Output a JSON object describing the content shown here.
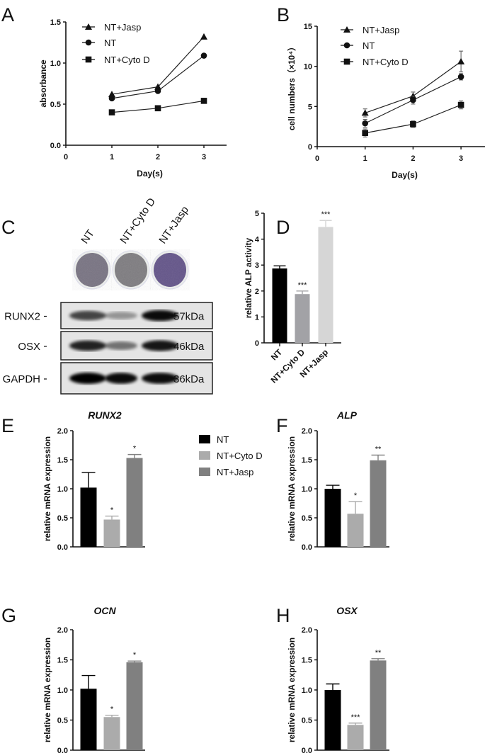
{
  "panels": [
    "A",
    "B",
    "C",
    "D",
    "E",
    "F",
    "G",
    "H"
  ],
  "chart_data": [
    {
      "id": "A",
      "type": "line",
      "title": "",
      "xlabel": "Day(s)",
      "ylabel": "absorbance",
      "xlim": [
        0,
        3.5
      ],
      "ylim": [
        0,
        1.5
      ],
      "xticks": [
        "0",
        "1",
        "2",
        "3"
      ],
      "yticks": [
        "0.0",
        "0.5",
        "1.0",
        "1.5"
      ],
      "legend_position": "top-left",
      "x": [
        1,
        2,
        3
      ],
      "series": [
        {
          "name": "NT+Jasp",
          "marker": "triangle",
          "values": [
            0.62,
            0.71,
            1.32
          ]
        },
        {
          "name": "NT",
          "marker": "circle",
          "values": [
            0.57,
            0.66,
            1.09
          ]
        },
        {
          "name": "NT+Cyto D",
          "marker": "square",
          "values": [
            0.4,
            0.45,
            0.54
          ]
        }
      ]
    },
    {
      "id": "B",
      "type": "line",
      "title": "",
      "xlabel": "Day(s)",
      "ylabel": "cell numbers（×10⁴）",
      "xlim": [
        0,
        3.5
      ],
      "ylim": [
        0,
        15
      ],
      "xticks": [
        "0",
        "1",
        "2",
        "3"
      ],
      "yticks": [
        "0",
        "5",
        "10",
        "15"
      ],
      "legend_position": "top-left",
      "x": [
        1,
        2,
        3
      ],
      "series": [
        {
          "name": "NT+Jasp",
          "marker": "triangle",
          "values": [
            4.2,
            6.3,
            10.6
          ],
          "errors": [
            0.5,
            0.5,
            1.3
          ]
        },
        {
          "name": "NT",
          "marker": "circle",
          "values": [
            2.9,
            5.8,
            8.7
          ],
          "errors": [
            0.5,
            0.5,
            0.4
          ]
        },
        {
          "name": "NT+Cyto D",
          "marker": "square",
          "values": [
            1.7,
            2.8,
            5.2
          ],
          "errors": [
            0.5,
            0.4,
            0.5
          ]
        }
      ]
    },
    {
      "id": "D",
      "type": "bar",
      "title": "",
      "xlabel": "",
      "ylabel": "relative ALP activity",
      "ylim": [
        0,
        5
      ],
      "yticks": [
        "0",
        "1",
        "2",
        "3",
        "4",
        "5"
      ],
      "categories": [
        "NT",
        "NT+Cyto D",
        "NT+Jasp"
      ],
      "values": [
        2.87,
        1.88,
        4.47
      ],
      "errors": [
        0.1,
        0.12,
        0.25
      ],
      "significance": [
        "",
        "***",
        "***"
      ],
      "colors": [
        "#000000",
        "#a2a2a6",
        "#d6d6d6"
      ]
    },
    {
      "id": "E",
      "type": "bar",
      "title": "RUNX2",
      "ylabel": "relative mRNA expression",
      "ylim": [
        0,
        2
      ],
      "yticks": [
        "0.0",
        "0.5",
        "1.0",
        "1.5",
        "2.0"
      ],
      "categories": [
        "NT",
        "NT+Cyto D",
        "NT+Jasp"
      ],
      "values": [
        1.02,
        0.47,
        1.53
      ],
      "errors": [
        0.26,
        0.06,
        0.06
      ],
      "significance": [
        "",
        "*",
        "*"
      ],
      "colors": [
        "#000000",
        "#ababab",
        "#808080"
      ]
    },
    {
      "id": "F",
      "type": "bar",
      "title": "ALP",
      "ylabel": "relative mRNA expression",
      "ylim": [
        0,
        2
      ],
      "yticks": [
        "0.0",
        "0.5",
        "1.0",
        "1.5",
        "2.0"
      ],
      "categories": [
        "NT",
        "NT+Cyto D",
        "NT+Jasp"
      ],
      "values": [
        1.0,
        0.57,
        1.49
      ],
      "errors": [
        0.06,
        0.21,
        0.09
      ],
      "significance": [
        "",
        "*",
        "**"
      ],
      "colors": [
        "#000000",
        "#ababab",
        "#808080"
      ]
    },
    {
      "id": "G",
      "type": "bar",
      "title": "OCN",
      "ylabel": "relative mRNA expression",
      "ylim": [
        0,
        2
      ],
      "yticks": [
        "0.0",
        "0.5",
        "1.0",
        "1.5",
        "2.0"
      ],
      "categories": [
        "NT",
        "NT+Cyto D",
        "NT+Jasp"
      ],
      "values": [
        1.02,
        0.55,
        1.46
      ],
      "errors": [
        0.22,
        0.03,
        0.02
      ],
      "significance": [
        "",
        "*",
        "*"
      ],
      "colors": [
        "#000000",
        "#ababab",
        "#808080"
      ]
    },
    {
      "id": "H",
      "type": "bar",
      "title": "OSX",
      "ylabel": "relative mRNA expression",
      "ylim": [
        0,
        2
      ],
      "yticks": [
        "0.0",
        "0.5",
        "1.0",
        "1.5",
        "2.0"
      ],
      "categories": [
        "NT",
        "NT+Cyto D",
        "NT+Jasp"
      ],
      "values": [
        1.0,
        0.42,
        1.49
      ],
      "errors": [
        0.1,
        0.03,
        0.03
      ],
      "significance": [
        "",
        "***",
        "**"
      ],
      "colors": [
        "#000000",
        "#ababab",
        "#808080"
      ]
    }
  ],
  "bar_legend": [
    {
      "name": "NT",
      "color": "#000000"
    },
    {
      "name": "NT+Cyto D",
      "color": "#ababab"
    },
    {
      "name": "NT+Jasp",
      "color": "#808080"
    }
  ],
  "panel_c": {
    "well_labels": [
      "NT",
      "NT+Cyto D",
      "NT+Jasp"
    ],
    "well_intensity": [
      0.5,
      0.4,
      0.85
    ],
    "blots": [
      {
        "protein": "RUNX2",
        "size": "57kDa",
        "band_intensity": [
          0.7,
          0.35,
          0.95
        ]
      },
      {
        "protein": "OSX",
        "size": "46kDa",
        "band_intensity": [
          0.85,
          0.5,
          0.9
        ]
      },
      {
        "protein": "GAPDH",
        "size": "36kDa",
        "band_intensity": [
          1.0,
          0.95,
          0.95
        ]
      }
    ]
  }
}
